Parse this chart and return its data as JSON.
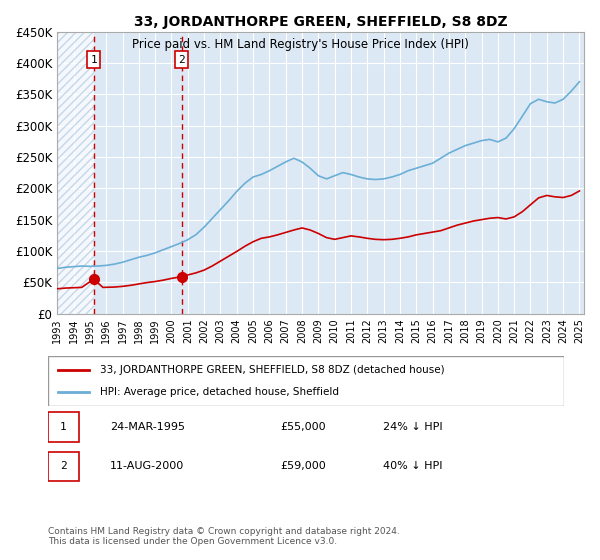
{
  "title": "33, JORDANTHORPE GREEN, SHEFFIELD, S8 8DZ",
  "subtitle": "Price paid vs. HM Land Registry's House Price Index (HPI)",
  "xlabel": "",
  "ylabel": "",
  "ylim": [
    0,
    450000
  ],
  "yticks": [
    0,
    50000,
    100000,
    150000,
    200000,
    250000,
    300000,
    350000,
    400000,
    450000
  ],
  "ytick_labels": [
    "£0",
    "£50K",
    "£100K",
    "£150K",
    "£200K",
    "£250K",
    "£300K",
    "£350K",
    "£400K",
    "£450K"
  ],
  "bg_color": "#dce9f5",
  "hatch_color": "#b0c8e0",
  "sale1_date_num": 1995.23,
  "sale1_price": 55000,
  "sale2_date_num": 2000.62,
  "sale2_price": 59000,
  "legend_line1": "33, JORDANTHORPE GREEN, SHEFFIELD, S8 8DZ (detached house)",
  "legend_line2": "HPI: Average price, detached house, Sheffield",
  "note1_label": "1",
  "note1_date": "24-MAR-1995",
  "note1_price": "£55,000",
  "note1_hpi": "24% ↓ HPI",
  "note2_label": "2",
  "note2_date": "11-AUG-2000",
  "note2_price": "£59,000",
  "note2_hpi": "40% ↓ HPI",
  "footer": "Contains HM Land Registry data © Crown copyright and database right 2024.\nThis data is licensed under the Open Government Licence v3.0.",
  "hpi_color": "#6baed6",
  "price_color": "#cc0000",
  "sale_marker_color": "#cc0000",
  "dashed_line_color": "#cc0000"
}
